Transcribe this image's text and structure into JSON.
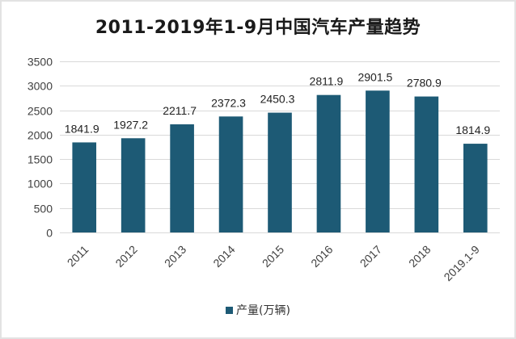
{
  "chart_data": {
    "type": "bar",
    "title": "2011-2019年1-9月中国汽车产量趋势",
    "categories": [
      "2011",
      "2012",
      "2013",
      "2014",
      "2015",
      "2016",
      "2017",
      "2018",
      "2019.1-9"
    ],
    "series": [
      {
        "name": "产量(万辆)",
        "values": [
          1841.9,
          1927.2,
          2211.7,
          2372.3,
          2450.3,
          2811.9,
          2901.5,
          2780.9,
          1814.9
        ],
        "data_labels": [
          "1841.9",
          "1927.2",
          "2211.7",
          "2372.3",
          "2450.3",
          "2811.9",
          "2901.5",
          "2780.9",
          "1814.9"
        ]
      }
    ],
    "ylim": [
      0,
      3500
    ],
    "y_ticks": [
      0,
      500,
      1000,
      1500,
      2000,
      2500,
      3000,
      3500
    ],
    "grid": true,
    "legend_position": "bottom",
    "bar_color": "#1d5a75",
    "xlabel": "",
    "ylabel": ""
  }
}
